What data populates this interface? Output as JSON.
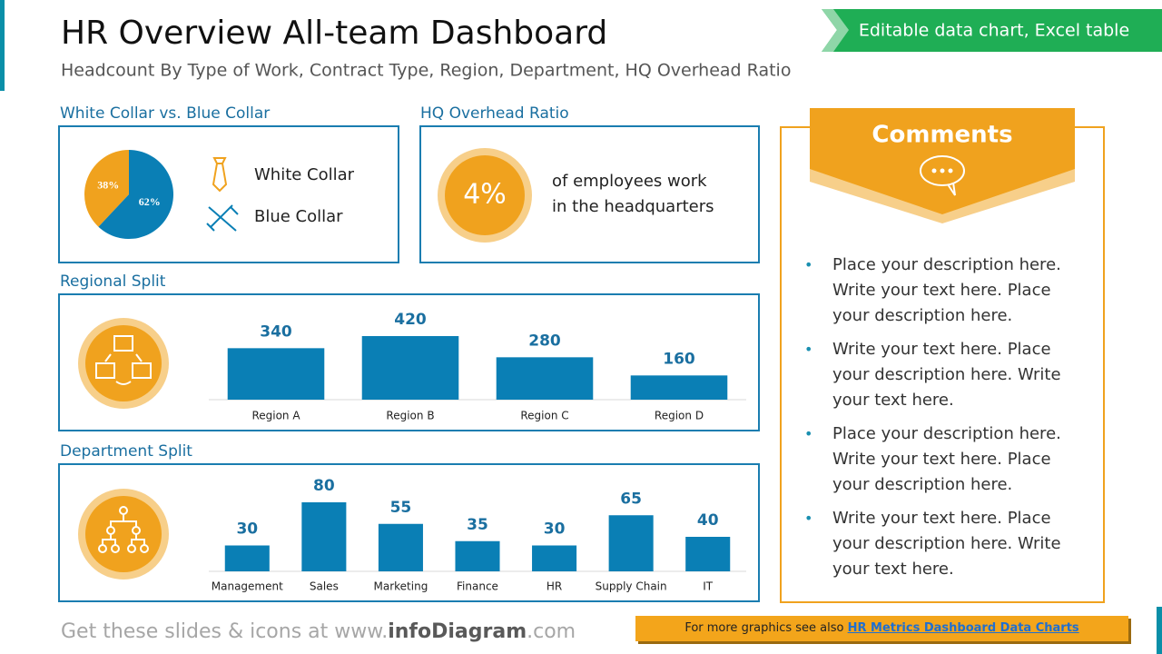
{
  "header": {
    "title": "HR Overview All-team Dashboard",
    "subtitle": "Headcount By Type of Work, Contract Type, Region, Department, HQ Overhead Ratio",
    "badge": "Editable data chart, Excel table"
  },
  "chart_data": [
    {
      "type": "pie",
      "title": "White Collar vs. Blue Collar",
      "categories": [
        "White Collar",
        "Blue Collar"
      ],
      "values": [
        38,
        62
      ],
      "value_labels": [
        "38%",
        "62%"
      ],
      "colors": [
        "#f0a21e",
        "#0a7fb5"
      ]
    },
    {
      "type": "kpi",
      "title": "HQ Overhead Ratio",
      "values": [
        4
      ],
      "value_labels": [
        "4%"
      ],
      "description": [
        "of employees work",
        "in the headquarters"
      ],
      "color": "#f0a21e"
    },
    {
      "type": "bar",
      "title": "Regional Split",
      "categories": [
        "Region A",
        "Region B",
        "Region C",
        "Region D"
      ],
      "values": [
        340,
        420,
        280,
        160
      ],
      "color": "#0a7fb5"
    },
    {
      "type": "bar",
      "title": "Department Split",
      "categories": [
        "Management",
        "Sales",
        "Marketing",
        "Finance",
        "HR",
        "Supply Chain",
        "IT"
      ],
      "values": [
        30,
        80,
        55,
        35,
        30,
        65,
        40
      ],
      "color": "#0a7fb5"
    }
  ],
  "comments": {
    "title": "Comments",
    "items": [
      "Place your description here. Write your text here. Place your description here.",
      "Write your text here. Place your description here. Write your text here.",
      "Place your description here. Write your text here. Place your description here.",
      "Write your text here. Place your description here. Write your text here."
    ]
  },
  "footer": {
    "text": [
      "Get these slides & icons at www.",
      "infoDiagram",
      ".com"
    ],
    "note": "For more graphics see also ",
    "link": "HR Metrics Dashboard Data Charts"
  }
}
